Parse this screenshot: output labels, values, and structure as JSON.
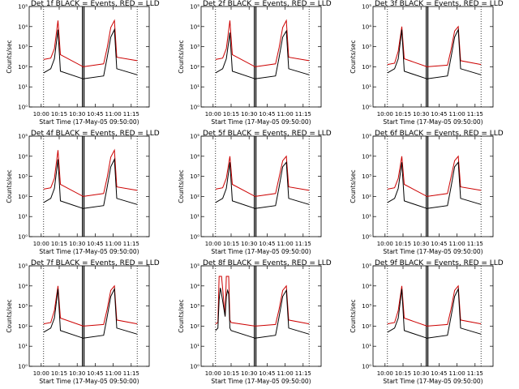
{
  "chart_data": {
    "type": "line",
    "layout": "3x3 grid",
    "y_scale": "log",
    "ylim": [
      1,
      100000
    ],
    "y_tick_labels": [
      "10⁰",
      "10¹",
      "10²",
      "10³",
      "10⁴",
      "10⁵"
    ],
    "ylabel": "Counts/sec",
    "xlabel": "Start Time (17-May-05 09:50:00)",
    "x_tick_labels": [
      "10:00",
      "10:15",
      "10:30",
      "10:45",
      "11:00",
      "11:15"
    ],
    "x_tick_minutes": [
      10,
      25,
      40,
      55,
      70,
      85
    ],
    "xlim_minutes_after_start": [
      0,
      100
    ],
    "series_colors": {
      "events": "#000000",
      "lld": "#cc0000"
    },
    "reference_lines": {
      "dotted_minutes": [
        12,
        90
      ],
      "solid_minutes": [
        45
      ]
    },
    "panels": [
      {
        "title": "Det 1f BLACK = Events, RED = LLD",
        "x": [
          12,
          18,
          21,
          24,
          26,
          45,
          62,
          65,
          68,
          71,
          73,
          90
        ],
        "events": [
          50,
          80,
          250,
          7000,
          60,
          25,
          35,
          300,
          3000,
          7000,
          80,
          40
        ],
        "lld": [
          230,
          270,
          800,
          20000,
          400,
          100,
          140,
          900,
          9000,
          20000,
          300,
          200
        ]
      },
      {
        "title": "Det 2f BLACK = Events, RED = LLD",
        "x": [
          12,
          18,
          21,
          24,
          26,
          45,
          62,
          65,
          68,
          71,
          73,
          90
        ],
        "events": [
          50,
          80,
          250,
          5000,
          60,
          25,
          35,
          300,
          3000,
          6000,
          80,
          40
        ],
        "lld": [
          230,
          270,
          800,
          20000,
          400,
          100,
          140,
          900,
          9000,
          20000,
          300,
          200
        ]
      },
      {
        "title": "Det 3f BLACK = Events, RED = LLD",
        "x": [
          12,
          18,
          21,
          24,
          26,
          45,
          62,
          65,
          68,
          71,
          73,
          90
        ],
        "events": [
          50,
          80,
          250,
          7000,
          60,
          25,
          35,
          300,
          3000,
          7000,
          80,
          40
        ],
        "lld": [
          130,
          150,
          600,
          10000,
          250,
          100,
          120,
          700,
          6000,
          10000,
          200,
          130
        ]
      },
      {
        "title": "Det 4f BLACK = Events, RED = LLD",
        "x": [
          12,
          18,
          21,
          24,
          26,
          45,
          62,
          65,
          68,
          71,
          73,
          90
        ],
        "events": [
          50,
          80,
          250,
          7000,
          60,
          25,
          35,
          300,
          3000,
          7000,
          80,
          40
        ],
        "lld": [
          230,
          270,
          800,
          20000,
          400,
          100,
          140,
          900,
          9000,
          20000,
          300,
          200
        ]
      },
      {
        "title": "Det 5f BLACK = Events, RED = LLD",
        "x": [
          12,
          18,
          21,
          24,
          26,
          45,
          62,
          65,
          68,
          71,
          73,
          90
        ],
        "events": [
          50,
          80,
          250,
          5000,
          60,
          25,
          35,
          300,
          3000,
          5000,
          80,
          40
        ],
        "lld": [
          230,
          270,
          800,
          10000,
          400,
          100,
          140,
          900,
          6000,
          10000,
          300,
          200
        ]
      },
      {
        "title": "Det 6f BLACK = Events, RED = LLD",
        "x": [
          12,
          18,
          21,
          24,
          26,
          45,
          62,
          65,
          68,
          71,
          73,
          90
        ],
        "events": [
          50,
          80,
          250,
          5000,
          60,
          25,
          35,
          300,
          3000,
          5000,
          80,
          40
        ],
        "lld": [
          230,
          270,
          800,
          10000,
          400,
          100,
          140,
          900,
          6000,
          10000,
          300,
          200
        ]
      },
      {
        "title": "Det 7f BLACK = Events, RED = LLD",
        "x": [
          12,
          18,
          21,
          24,
          26,
          45,
          62,
          65,
          68,
          71,
          73,
          90
        ],
        "events": [
          50,
          80,
          250,
          7000,
          60,
          25,
          35,
          300,
          3000,
          7000,
          80,
          40
        ],
        "lld": [
          130,
          150,
          600,
          10000,
          250,
          100,
          120,
          700,
          6000,
          10000,
          200,
          130
        ]
      },
      {
        "title": "Det 8f BLACK = Events, RED = LLD",
        "x": [
          12,
          14,
          15,
          16,
          17,
          20,
          21,
          22,
          23,
          24,
          25,
          45,
          62,
          65,
          68,
          71,
          73,
          90
        ],
        "events": [
          60,
          80,
          2000,
          8000,
          4000,
          300,
          3000,
          6000,
          4000,
          80,
          60,
          25,
          35,
          300,
          3000,
          6000,
          80,
          40
        ],
        "lld": [
          130,
          150,
          30000,
          30000,
          30000,
          300,
          30000,
          30000,
          30000,
          200,
          150,
          100,
          120,
          700,
          6000,
          10000,
          200,
          130
        ]
      },
      {
        "title": "Det 9f BLACK = Events, RED = LLD",
        "x": [
          12,
          18,
          21,
          24,
          26,
          45,
          62,
          65,
          68,
          71,
          73,
          90
        ],
        "events": [
          50,
          80,
          250,
          7000,
          60,
          25,
          35,
          300,
          3000,
          7000,
          80,
          40
        ],
        "lld": [
          130,
          150,
          600,
          10000,
          250,
          100,
          120,
          700,
          6000,
          10000,
          200,
          130
        ]
      }
    ]
  }
}
